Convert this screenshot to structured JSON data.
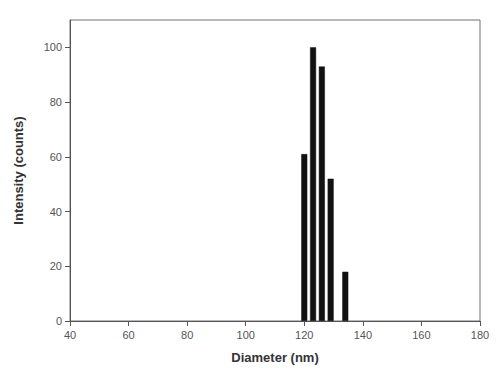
{
  "chart_data": {
    "type": "bar",
    "x": [
      120,
      123,
      126,
      129,
      134
    ],
    "values": [
      61,
      100,
      93,
      52,
      18
    ],
    "color": "#111111",
    "xlabel": "Diameter (nm)",
    "ylabel": "Intensity (counts)",
    "xlim": [
      40,
      180
    ],
    "ylim": [
      0,
      110
    ],
    "xticks": [
      40,
      60,
      80,
      100,
      120,
      140,
      160,
      180
    ],
    "yticks": [
      0,
      20,
      40,
      60,
      80,
      100
    ],
    "grid": false
  }
}
